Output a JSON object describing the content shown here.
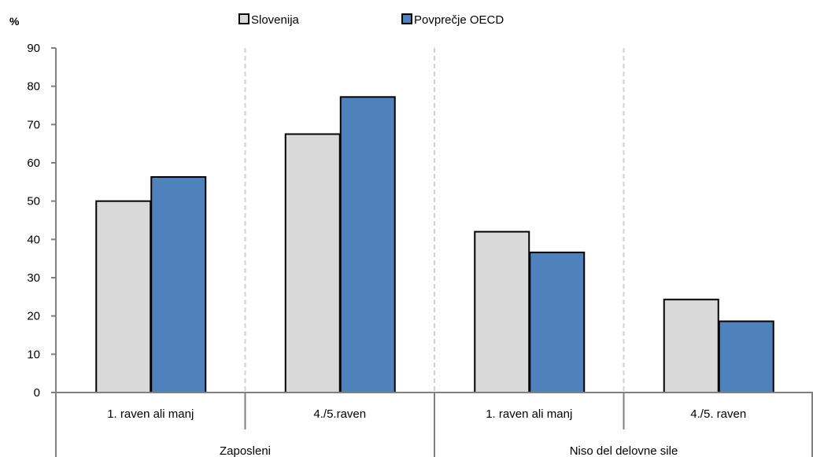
{
  "chart_data": {
    "type": "bar",
    "y_unit_label": "%",
    "categories": [
      "1. raven ali manj",
      "4./5.raven",
      "1. raven ali manj",
      "4./5. raven"
    ],
    "groups": [
      {
        "label": "Zaposleni",
        "categories": [
          0,
          1
        ]
      },
      {
        "label": "Niso del delovne sile",
        "categories": [
          2,
          3
        ]
      }
    ],
    "series": [
      {
        "name": "Slovenija",
        "values": [
          50,
          67.5,
          42,
          24.3
        ],
        "color": "#d9d9d9"
      },
      {
        "name": "Povprečje OECD",
        "values": [
          56.3,
          77.2,
          36.6,
          18.6
        ],
        "color": "#4f81bd"
      }
    ],
    "ylim": [
      0,
      90
    ],
    "yticks": [
      0,
      10,
      20,
      30,
      40,
      50,
      60,
      70,
      80,
      90
    ],
    "grid": "vertical dashed separators between categories",
    "legend_position": "top"
  }
}
